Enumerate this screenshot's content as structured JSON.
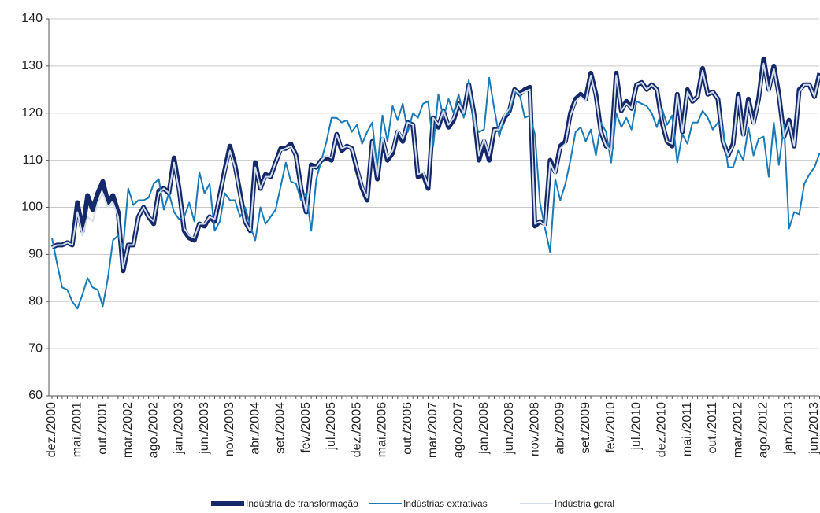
{
  "chart_data": {
    "type": "line",
    "categories": [
      "dez./2000",
      null,
      null,
      null,
      null,
      "mai./2001",
      null,
      null,
      null,
      null,
      "out./2001",
      null,
      null,
      null,
      null,
      "mar./2002",
      null,
      null,
      null,
      null,
      "ago./2002",
      null,
      null,
      null,
      null,
      "jan./2003",
      null,
      null,
      null,
      null,
      "jun./2003",
      null,
      null,
      null,
      null,
      "nov./2003",
      null,
      null,
      null,
      null,
      "abr./2004",
      null,
      null,
      null,
      null,
      "set./2004",
      null,
      null,
      null,
      null,
      "fev./2005",
      null,
      null,
      null,
      null,
      "jul./2005",
      null,
      null,
      null,
      null,
      "dez./2005",
      null,
      null,
      null,
      null,
      "mai./2006",
      null,
      null,
      null,
      null,
      "out./2006",
      null,
      null,
      null,
      null,
      "mar./2007",
      null,
      null,
      null,
      null,
      "ago./2007",
      null,
      null,
      null,
      null,
      "jan./2008",
      null,
      null,
      null,
      null,
      "jun./2008",
      null,
      null,
      null,
      null,
      "nov./2008",
      null,
      null,
      null,
      null,
      "abr./2009",
      null,
      null,
      null,
      null,
      "set./2009",
      null,
      null,
      null,
      null,
      "fev./2010",
      null,
      null,
      null,
      null,
      "jul./2010",
      null,
      null,
      null,
      null,
      "dez./2010",
      null,
      null,
      null,
      null,
      "mai./2011",
      null,
      null,
      null,
      null,
      "out./2011",
      null,
      null,
      null,
      null,
      "mar./2012",
      null,
      null,
      null,
      null,
      "ago./2012",
      null,
      null,
      null,
      null,
      "jan./2013",
      null,
      null,
      null,
      null,
      "jun./2013",
      null
    ],
    "series": [
      {
        "name": "Indústria de transformação",
        "color": "#14286a",
        "width": 6,
        "values": [
          91.5,
          92,
          92,
          92.5,
          92,
          101,
          95,
          102.5,
          99.5,
          103,
          105.5,
          101,
          102.5,
          99,
          86.5,
          92,
          92,
          98,
          100,
          98,
          96.5,
          103.5,
          104,
          103,
          110.5,
          104,
          95,
          93.5,
          93,
          96.5,
          96,
          98,
          97,
          102.5,
          108,
          113,
          109,
          103,
          97,
          95,
          109.5,
          104,
          107,
          106.5,
          109.5,
          112.5,
          112.5,
          113.5,
          111,
          104,
          99,
          109,
          108.5,
          110,
          110.5,
          110,
          115.5,
          112,
          113,
          112.5,
          108,
          104,
          101.5,
          114,
          106,
          114.5,
          110,
          111.5,
          116,
          114,
          118,
          117.5,
          106.5,
          107,
          104,
          119,
          117,
          120.5,
          117,
          118.5,
          122,
          120,
          126,
          120,
          110,
          114,
          110,
          116.5,
          116.5,
          119,
          120.5,
          125,
          124,
          125,
          125.5,
          96,
          97,
          96.5,
          110,
          107.5,
          113,
          114,
          120,
          123,
          124,
          123,
          128.5,
          124,
          116,
          113,
          112.5,
          128.5,
          120.5,
          122.5,
          121,
          126,
          126.5,
          125,
          126,
          125,
          118,
          114,
          113,
          124,
          116,
          125,
          122.5,
          123.5,
          129.5,
          124,
          124.5,
          123,
          114,
          111,
          113.5,
          124,
          115.5,
          123,
          118,
          123,
          131.5,
          125,
          130,
          124,
          115,
          118.5,
          113,
          125,
          126,
          126,
          123.5,
          128.5
        ]
      },
      {
        "name": "Indústrias extrativas",
        "color": "#1a7ab8",
        "width": 2,
        "values": [
          93.5,
          88,
          83,
          82.5,
          80,
          78.5,
          81.5,
          85,
          83,
          82.5,
          79,
          85,
          93,
          94,
          91.5,
          104,
          100.5,
          101.5,
          101.5,
          102,
          105,
          106,
          99.5,
          103,
          99,
          97.5,
          98,
          101,
          97,
          107.5,
          103,
          105,
          95,
          97,
          103,
          101.5,
          101.5,
          98,
          100,
          96,
          93,
          100,
          96.5,
          98,
          99.5,
          104.5,
          109.5,
          105.5,
          105,
          101.5,
          103,
          95,
          106,
          110,
          114,
          119,
          119,
          118,
          118.5,
          116,
          117.5,
          113.5,
          116,
          118,
          108,
          119.5,
          114,
          121.5,
          118.5,
          122,
          116,
          120,
          119,
          122,
          122.5,
          113,
          124,
          119,
          123,
          120,
          124,
          119,
          127,
          117.5,
          116,
          116.5,
          127.5,
          121,
          115,
          119.5,
          120,
          124.5,
          124,
          119,
          119.5,
          115.5,
          101,
          95.5,
          90.5,
          106,
          101.5,
          105,
          110,
          116,
          117,
          114,
          116.5,
          111,
          118,
          116,
          109.5,
          120,
          117,
          119,
          116.5,
          122.5,
          122,
          121.5,
          120,
          117,
          121,
          117.5,
          119.5,
          109.5,
          115.5,
          113.5,
          118,
          118,
          120.5,
          119,
          116.5,
          118,
          117,
          108.5,
          108.5,
          112,
          110,
          117,
          111,
          114.5,
          115,
          106.5,
          118,
          109,
          117.5,
          95.5,
          99,
          98.5,
          105,
          107,
          108.5,
          111.5
        ]
      },
      {
        "name": "Indústria geral",
        "color": "#d3deec",
        "width": 2,
        "values": [
          91.5,
          92,
          92,
          92.5,
          92,
          99,
          94,
          98,
          97,
          101,
          103,
          100,
          101,
          98,
          87,
          92,
          92,
          98,
          100,
          98,
          97,
          103,
          104,
          103,
          109.5,
          103.5,
          95.5,
          94,
          93.5,
          96.5,
          96.5,
          98,
          97.5,
          102.5,
          107.5,
          112,
          108.5,
          102.5,
          97,
          95,
          108.5,
          104,
          106.5,
          106.5,
          109.5,
          112,
          112.5,
          113,
          111,
          104,
          99,
          108.5,
          108.5,
          110,
          111,
          110.5,
          115.5,
          112.5,
          113,
          112.5,
          108.5,
          104.5,
          102,
          114,
          106.5,
          115,
          110.5,
          112,
          116.5,
          114.5,
          118,
          117.5,
          107,
          107.5,
          104.5,
          119,
          117.5,
          120.5,
          117.5,
          119,
          122,
          120,
          126,
          120,
          111,
          114.5,
          111,
          116.5,
          116.5,
          119.5,
          121,
          125,
          124,
          124.5,
          125,
          96.5,
          97,
          96,
          109.5,
          107,
          112.5,
          113.5,
          119.5,
          122.5,
          123.5,
          122.5,
          128,
          123.5,
          116,
          113,
          112,
          128,
          120.5,
          122,
          121,
          126,
          126.5,
          125,
          126,
          125,
          118.5,
          114,
          113.5,
          124,
          116,
          124.5,
          122.5,
          123.5,
          129,
          124,
          124.5,
          123,
          114,
          111,
          113,
          123.5,
          115,
          122.5,
          117.5,
          122.5,
          130.5,
          124.5,
          129.5,
          123.5,
          115,
          118,
          113,
          124.5,
          126,
          126,
          123.5,
          128
        ]
      }
    ],
    "ylim": [
      60,
      140
    ],
    "yticks": [
      60,
      70,
      80,
      90,
      100,
      110,
      120,
      130,
      140
    ],
    "grid": true
  }
}
